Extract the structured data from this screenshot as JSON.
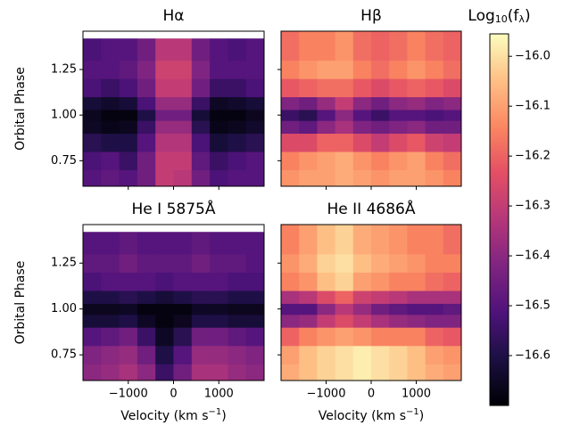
{
  "chart_data": [
    {
      "type": "heatmap",
      "title": "Hα",
      "ylabel": "Orbital Phase",
      "xticklabels": false,
      "xlim": [
        -2000,
        2000
      ],
      "ylim": [
        0.61,
        1.46
      ],
      "xticks": [
        -1000,
        0,
        1000
      ],
      "yticks": [
        {
          "value": 0.75,
          "label": "0.75"
        },
        {
          "value": 1.0,
          "label": "1.00"
        },
        1.25
      ],
      "x_edges": [
        -2000,
        -1600,
        -1200,
        -800,
        -400,
        0,
        400,
        800,
        1200,
        1600,
        2000
      ],
      "y_edges": [
        0.61,
        0.7,
        0.8,
        0.9,
        0.97,
        1.03,
        1.1,
        1.2,
        1.3,
        1.42,
        1.46
      ],
      "values": [
        [
          -16.5,
          -16.48,
          -16.5,
          -16.45,
          -16.3,
          -16.32,
          -16.45,
          -16.52,
          -16.5,
          -16.5
        ],
        [
          -16.52,
          -16.5,
          -16.55,
          -16.45,
          -16.3,
          -16.3,
          -16.48,
          -16.55,
          -16.52,
          -16.5
        ],
        [
          -16.58,
          -16.6,
          -16.6,
          -16.5,
          -16.33,
          -16.33,
          -16.52,
          -16.62,
          -16.6,
          -16.58
        ],
        [
          -16.65,
          -16.67,
          -16.66,
          -16.55,
          -16.38,
          -16.38,
          -16.58,
          -16.67,
          -16.66,
          -16.64
        ],
        [
          -16.66,
          -16.68,
          -16.68,
          -16.6,
          -16.45,
          -16.45,
          -16.62,
          -16.68,
          -16.68,
          -16.66
        ],
        [
          -16.62,
          -16.64,
          -16.62,
          -16.52,
          -16.38,
          -16.38,
          -16.55,
          -16.65,
          -16.64,
          -16.62
        ],
        [
          -16.52,
          -16.55,
          -16.52,
          -16.45,
          -16.3,
          -16.3,
          -16.45,
          -16.55,
          -16.55,
          -16.52
        ],
        [
          -16.5,
          -16.5,
          -16.48,
          -16.42,
          -16.28,
          -16.28,
          -16.42,
          -16.5,
          -16.5,
          -16.5
        ],
        [
          -16.52,
          -16.5,
          -16.5,
          -16.45,
          -16.32,
          -16.32,
          -16.45,
          -16.5,
          -16.52,
          -16.5
        ],
        [
          null,
          null,
          null,
          null,
          null,
          null,
          null,
          null,
          null,
          null
        ]
      ]
    },
    {
      "type": "heatmap",
      "title": "Hβ",
      "xticklabels": false,
      "yticklabels": false,
      "xlim": [
        -2000,
        2000
      ],
      "ylim": [
        0.61,
        1.46
      ],
      "xticks": [
        -1000,
        0,
        1000
      ],
      "yticks": [
        0.75,
        1,
        1.25
      ],
      "x_edges": [
        -2000,
        -1600,
        -1200,
        -800,
        -400,
        0,
        400,
        800,
        1200,
        1600,
        2000
      ],
      "y_edges": [
        0.61,
        0.7,
        0.8,
        0.9,
        0.97,
        1.03,
        1.1,
        1.2,
        1.3,
        1.46
      ],
      "values": [
        [
          -16.12,
          -16.1,
          -16.1,
          -16.08,
          -16.1,
          -16.12,
          -16.1,
          -16.1,
          -16.12,
          -16.15
        ],
        [
          -16.15,
          -16.12,
          -16.1,
          -16.08,
          -16.12,
          -16.15,
          -16.12,
          -16.1,
          -16.15,
          -16.18
        ],
        [
          -16.25,
          -16.25,
          -16.2,
          -16.2,
          -16.25,
          -16.3,
          -16.25,
          -16.22,
          -16.28,
          -16.3
        ],
        [
          -16.45,
          -16.48,
          -16.4,
          -16.35,
          -16.42,
          -16.45,
          -16.42,
          -16.4,
          -16.45,
          -16.45
        ],
        [
          -16.55,
          -16.58,
          -16.5,
          -16.4,
          -16.5,
          -16.55,
          -16.5,
          -16.5,
          -16.52,
          -16.5
        ],
        [
          -16.42,
          -16.45,
          -16.38,
          -16.3,
          -16.4,
          -16.45,
          -16.4,
          -16.38,
          -16.42,
          -16.4
        ],
        [
          -16.22,
          -16.2,
          -16.18,
          -16.18,
          -16.22,
          -16.25,
          -16.22,
          -16.2,
          -16.22,
          -16.25
        ],
        [
          -16.15,
          -16.12,
          -16.1,
          -16.1,
          -16.15,
          -16.18,
          -16.15,
          -16.12,
          -16.15,
          -16.18
        ],
        [
          -16.18,
          -16.15,
          -16.15,
          -16.12,
          -16.18,
          -16.2,
          -16.18,
          -16.15,
          -16.18,
          -16.2
        ]
      ]
    },
    {
      "type": "heatmap",
      "title": "He I 5875Å",
      "ylabel": "Orbital Phase",
      "xlabel": [
        "Velocity (km s",
        "−1",
        ")"
      ],
      "xlim": [
        -2000,
        2000
      ],
      "ylim": [
        0.61,
        1.46
      ],
      "xticks": [
        {
          "value": -1000,
          "label": "−1000"
        },
        0,
        1000
      ],
      "yticks": [
        {
          "value": 0.75,
          "label": "0.75"
        },
        {
          "value": 1.0,
          "label": "1.00"
        },
        1.25
      ],
      "x_edges": [
        -2000,
        -1600,
        -1200,
        -800,
        -400,
        0,
        400,
        800,
        1200,
        1600,
        2000
      ],
      "y_edges": [
        0.61,
        0.7,
        0.8,
        0.9,
        0.97,
        1.03,
        1.1,
        1.2,
        1.3,
        1.42,
        1.46
      ],
      "values": [
        [
          -16.4,
          -16.38,
          -16.35,
          -16.4,
          -16.55,
          -16.45,
          -16.35,
          -16.35,
          -16.38,
          -16.4
        ],
        [
          -16.42,
          -16.4,
          -16.38,
          -16.45,
          -16.6,
          -16.5,
          -16.38,
          -16.38,
          -16.4,
          -16.42
        ],
        [
          -16.5,
          -16.48,
          -16.45,
          -16.55,
          -16.65,
          -16.58,
          -16.45,
          -16.45,
          -16.48,
          -16.5
        ],
        [
          -16.62,
          -16.62,
          -16.6,
          -16.65,
          -16.68,
          -16.66,
          -16.6,
          -16.6,
          -16.62,
          -16.62
        ],
        [
          -16.66,
          -16.66,
          -16.65,
          -16.68,
          -16.68,
          -16.68,
          -16.65,
          -16.65,
          -16.66,
          -16.66
        ],
        [
          -16.6,
          -16.6,
          -16.58,
          -16.6,
          -16.62,
          -16.6,
          -16.58,
          -16.58,
          -16.6,
          -16.6
        ],
        [
          -16.52,
          -16.5,
          -16.5,
          -16.5,
          -16.52,
          -16.5,
          -16.5,
          -16.5,
          -16.52,
          -16.52
        ],
        [
          -16.48,
          -16.48,
          -16.45,
          -16.48,
          -16.48,
          -16.48,
          -16.45,
          -16.48,
          -16.48,
          -16.5
        ],
        [
          -16.5,
          -16.5,
          -16.48,
          -16.5,
          -16.5,
          -16.5,
          -16.48,
          -16.5,
          -16.5,
          -16.5
        ],
        [
          null,
          null,
          null,
          null,
          null,
          null,
          null,
          null,
          null,
          null
        ]
      ]
    },
    {
      "type": "heatmap",
      "title": "He II 4686Å",
      "yticklabels": false,
      "xlabel": [
        "Velocity (km s",
        "−1",
        ")"
      ],
      "xlim": [
        -2000,
        2000
      ],
      "ylim": [
        0.61,
        1.46
      ],
      "xticks": [
        {
          "value": -1000,
          "label": "−1000"
        },
        0,
        1000
      ],
      "yticks": [
        0.75,
        1,
        1.25
      ],
      "x_edges": [
        -2000,
        -1600,
        -1200,
        -800,
        -400,
        0,
        400,
        800,
        1200,
        1600,
        2000
      ],
      "y_edges": [
        0.61,
        0.7,
        0.8,
        0.9,
        0.97,
        1.03,
        1.1,
        1.2,
        1.3,
        1.46
      ],
      "values": [
        [
          -16.08,
          -16.05,
          -16.02,
          -16.0,
          -15.98,
          -16.0,
          -16.02,
          -16.05,
          -16.08,
          -16.1
        ],
        [
          -16.1,
          -16.05,
          -16.02,
          -16.0,
          -15.98,
          -16.0,
          -16.02,
          -16.05,
          -16.1,
          -16.12
        ],
        [
          -16.2,
          -16.15,
          -16.12,
          -16.1,
          -16.12,
          -16.15,
          -16.15,
          -16.15,
          -16.2,
          -16.22
        ],
        [
          -16.4,
          -16.38,
          -16.3,
          -16.25,
          -16.3,
          -16.35,
          -16.38,
          -16.4,
          -16.42,
          -16.42
        ],
        [
          -16.5,
          -16.5,
          -16.4,
          -16.32,
          -16.38,
          -16.45,
          -16.48,
          -16.5,
          -16.5,
          -16.48
        ],
        [
          -16.35,
          -16.32,
          -16.25,
          -16.2,
          -16.28,
          -16.3,
          -16.32,
          -16.35,
          -16.35,
          -16.35
        ],
        [
          -16.15,
          -16.12,
          -16.05,
          -16.02,
          -16.1,
          -16.12,
          -16.15,
          -16.15,
          -16.18,
          -16.2
        ],
        [
          -16.12,
          -16.08,
          -16.02,
          -16.0,
          -16.05,
          -16.08,
          -16.1,
          -16.12,
          -16.15,
          -16.15
        ],
        [
          -16.15,
          -16.1,
          -16.05,
          -16.02,
          -16.08,
          -16.1,
          -16.12,
          -16.15,
          -16.15,
          -16.18
        ]
      ]
    },
    {
      "type": "colorbar",
      "colormap": "magma",
      "label": [
        "Log",
        "10",
        "(f",
        "λ",
        ")"
      ],
      "clim": [
        -16.7,
        -15.955
      ],
      "ticks": [
        {
          "value": -16.0,
          "label": "−16.0"
        },
        {
          "value": -16.1,
          "label": "−16.1"
        },
        {
          "value": -16.2,
          "label": "−16.2"
        },
        {
          "value": -16.3,
          "label": "−16.3"
        },
        {
          "value": -16.4,
          "label": "−16.4"
        },
        {
          "value": -16.5,
          "label": "−16.5"
        },
        {
          "value": -16.6,
          "label": "−16.6"
        }
      ]
    }
  ]
}
